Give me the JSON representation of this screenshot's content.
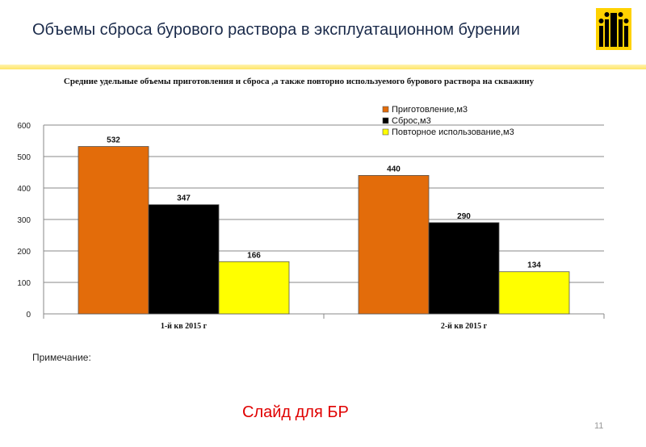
{
  "slide": {
    "title": "Объемы сброса бурового раствора в эксплуатационном бурении",
    "note_label": "Примечание:",
    "footer_text": "Слайд для БР",
    "page_number": "11"
  },
  "colors": {
    "title_text": "#1a2a4a",
    "accent_yellow": "#ffe566",
    "footer_red": "#e00000"
  },
  "logo_icon": "rosneft-logo-icon",
  "chart_data": {
    "type": "bar",
    "title": "Средние удельные объемы приготовления и сброса ,а также повторно используемого бурового раствора на скважину",
    "categories": [
      "1-й кв 2015 г",
      "2-й кв 2015 г"
    ],
    "series": [
      {
        "name": "Приготовление,м3",
        "values": [
          532,
          440
        ],
        "color": "#e36c0a"
      },
      {
        "name": "Сброс,м3",
        "values": [
          347,
          290
        ],
        "color": "#000000"
      },
      {
        "name": "Повторное использование,м3",
        "values": [
          166,
          134
        ],
        "color": "#ffff00"
      }
    ],
    "ylim": [
      0,
      600
    ],
    "yticks": [
      0,
      100,
      200,
      300,
      400,
      500,
      600
    ],
    "grid": true,
    "legend_position": "top-right"
  }
}
